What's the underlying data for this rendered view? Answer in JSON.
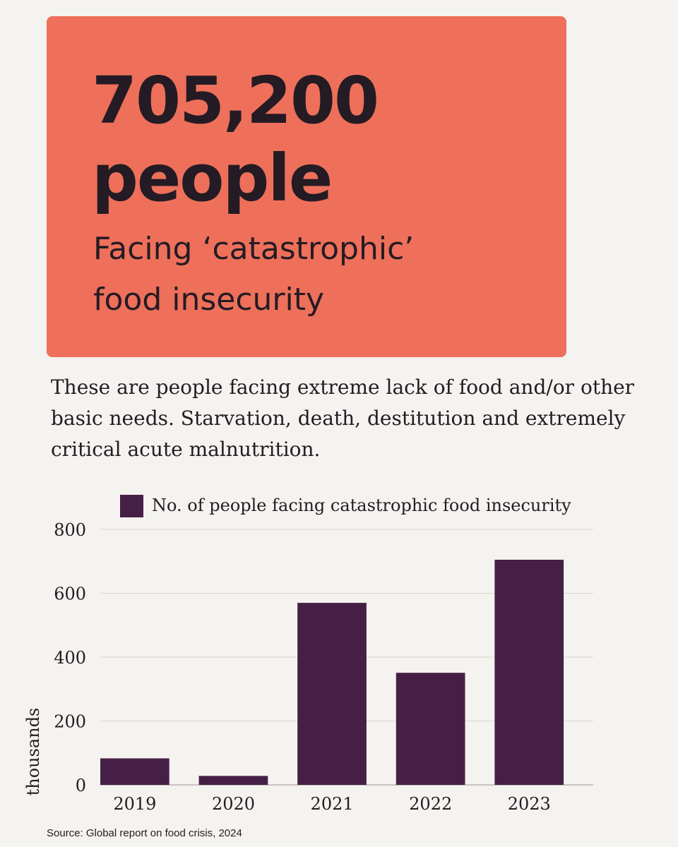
{
  "headline": {
    "number": "705,200",
    "unit": "people"
  },
  "subhead": {
    "line1": "Facing ‘catastrophic’",
    "line2": "food insecurity"
  },
  "description": "These are people facing extreme lack of food and/or other basic needs. Starvation, death, destitution and extremely critical acute malnutrition.",
  "source": "Source: Global report on food crisis, 2024",
  "colors": {
    "hero_bg": "#ee705a",
    "bar": "#461f46",
    "grid": "#d9d6d2",
    "text": "#241b24"
  },
  "chart_data": {
    "type": "bar",
    "categories": [
      "2019",
      "2020",
      "2021",
      "2022",
      "2023"
    ],
    "series": [
      {
        "name": "No. of people facing catastrophic food insecurity",
        "values": [
          83,
          28,
          570,
          351,
          705
        ]
      }
    ],
    "title": "",
    "xlabel": "",
    "ylabel": "thousands",
    "ylim": [
      0,
      800
    ],
    "yticks": [
      0,
      200,
      400,
      600,
      800
    ],
    "grid": true,
    "legend": "top-center"
  }
}
